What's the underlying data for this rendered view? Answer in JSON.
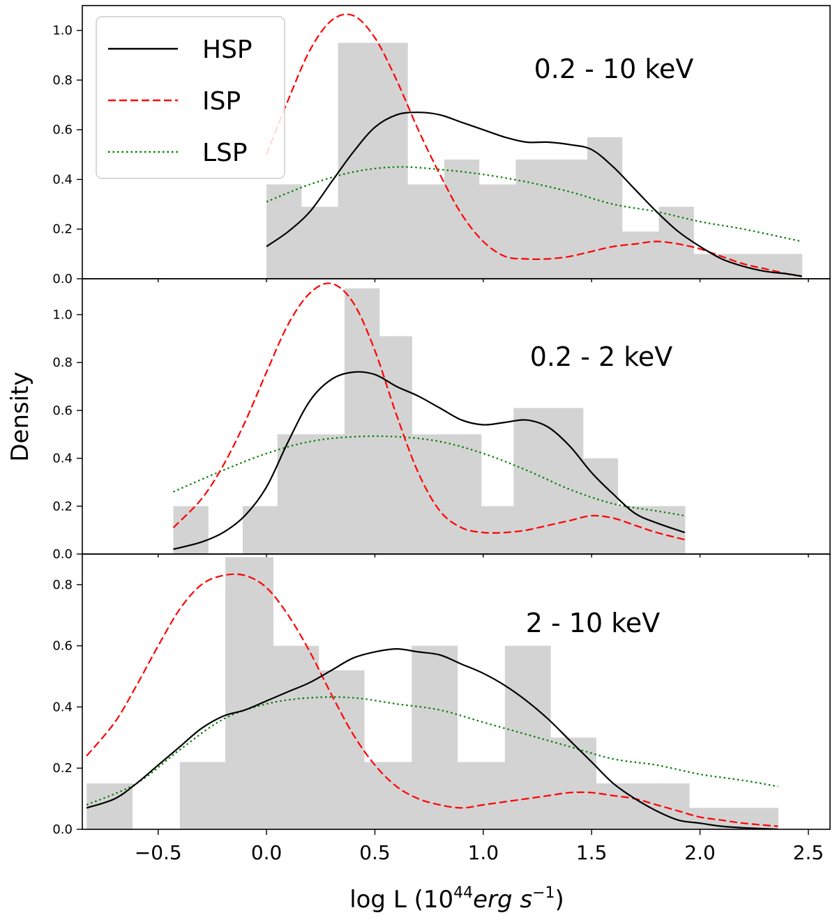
{
  "chart_data": {
    "type": "histogram-kde",
    "ylabel": "Density",
    "xlabel_prefix": "log L (10",
    "xlabel_exp": "44",
    "xlabel_unit": "erg s",
    "xlabel_unit_exp": "−1",
    "xlabel_suffix": ")",
    "xlim": [
      -0.85,
      2.6
    ],
    "xticks": [
      -0.5,
      0.0,
      0.5,
      1.0,
      1.5,
      2.0,
      2.5
    ],
    "xtick_labels": [
      "−0.5",
      "0.0",
      "0.5",
      "1.0",
      "1.5",
      "2.0",
      "2.5"
    ],
    "legend": [
      {
        "name": "HSP",
        "color": "#000000",
        "style": "solid"
      },
      {
        "name": "ISP",
        "color": "#ff0000",
        "style": "dashed"
      },
      {
        "name": "LSP",
        "color": "#008000",
        "style": "dotted"
      }
    ],
    "panels": [
      {
        "label": "0.2 - 10 keV",
        "ylim": [
          0,
          1.1
        ],
        "yticks": [
          0.0,
          0.2,
          0.4,
          0.6,
          0.8,
          1.0
        ],
        "ytick_labels": [
          "0.0",
          "0.2",
          "0.4",
          "0.6",
          "0.8",
          "1.0"
        ],
        "bin_edges": [
          0.0,
          0.16,
          0.33,
          0.49,
          0.65,
          0.82,
          0.98,
          1.15,
          1.31,
          1.48,
          1.64,
          1.81,
          1.97,
          2.14,
          2.3,
          2.47
        ],
        "bins": [
          0.38,
          0.29,
          0.95,
          0.95,
          0.38,
          0.48,
          0.38,
          0.48,
          0.48,
          0.57,
          0.19,
          0.29,
          0.1,
          0.1,
          0.1
        ],
        "series": [
          {
            "name": "HSP",
            "x": [
              0.0,
              0.1,
              0.2,
              0.3,
              0.4,
              0.5,
              0.6,
              0.7,
              0.8,
              0.9,
              1.0,
              1.1,
              1.2,
              1.3,
              1.4,
              1.5,
              1.6,
              1.7,
              1.8,
              1.9,
              2.0,
              2.1,
              2.2,
              2.3,
              2.4,
              2.47
            ],
            "y": [
              0.13,
              0.19,
              0.27,
              0.39,
              0.51,
              0.61,
              0.66,
              0.67,
              0.66,
              0.63,
              0.6,
              0.57,
              0.55,
              0.55,
              0.54,
              0.52,
              0.45,
              0.36,
              0.27,
              0.19,
              0.13,
              0.08,
              0.05,
              0.03,
              0.02,
              0.01
            ]
          },
          {
            "name": "ISP",
            "x": [
              0.0,
              0.1,
              0.2,
              0.3,
              0.4,
              0.5,
              0.6,
              0.7,
              0.8,
              0.9,
              1.0,
              1.1,
              1.2,
              1.3,
              1.4,
              1.5,
              1.6,
              1.7,
              1.8,
              1.9,
              2.0,
              2.1,
              2.2,
              2.3,
              2.4,
              2.47
            ],
            "y": [
              0.5,
              0.72,
              0.92,
              1.04,
              1.06,
              0.97,
              0.8,
              0.6,
              0.42,
              0.26,
              0.15,
              0.09,
              0.08,
              0.08,
              0.09,
              0.11,
              0.13,
              0.14,
              0.15,
              0.14,
              0.12,
              0.09,
              0.06,
              0.04,
              0.02,
              0.01
            ]
          },
          {
            "name": "LSP",
            "x": [
              0.0,
              0.2,
              0.4,
              0.6,
              0.8,
              1.0,
              1.2,
              1.4,
              1.6,
              1.8,
              2.0,
              2.2,
              2.47
            ],
            "y": [
              0.31,
              0.38,
              0.43,
              0.45,
              0.44,
              0.42,
              0.39,
              0.35,
              0.3,
              0.27,
              0.23,
              0.2,
              0.15
            ]
          }
        ]
      },
      {
        "label": "0.2 - 2 keV",
        "ylim": [
          0,
          1.15
        ],
        "yticks": [
          0.0,
          0.2,
          0.4,
          0.6,
          0.8,
          1.0
        ],
        "ytick_labels": [
          "0.0",
          "0.2",
          "0.4",
          "0.6",
          "0.8",
          "1.0"
        ],
        "bin_edges": [
          -0.43,
          -0.27,
          -0.11,
          0.05,
          0.2,
          0.36,
          0.52,
          0.67,
          0.83,
          0.99,
          1.14,
          1.3,
          1.46,
          1.62,
          1.77,
          1.93
        ],
        "bins": [
          0.2,
          0.0,
          0.2,
          0.5,
          0.5,
          1.11,
          0.91,
          0.5,
          0.5,
          0.2,
          0.61,
          0.61,
          0.4,
          0.2,
          0.2
        ],
        "series": [
          {
            "name": "HSP",
            "x": [
              -0.43,
              -0.3,
              -0.2,
              -0.1,
              0.0,
              0.1,
              0.2,
              0.3,
              0.4,
              0.5,
              0.6,
              0.7,
              0.8,
              0.9,
              1.0,
              1.1,
              1.2,
              1.3,
              1.4,
              1.5,
              1.6,
              1.7,
              1.8,
              1.93
            ],
            "y": [
              0.02,
              0.05,
              0.09,
              0.16,
              0.28,
              0.47,
              0.64,
              0.73,
              0.76,
              0.75,
              0.7,
              0.66,
              0.61,
              0.56,
              0.54,
              0.55,
              0.56,
              0.53,
              0.45,
              0.34,
              0.25,
              0.17,
              0.13,
              0.09
            ]
          },
          {
            "name": "ISP",
            "x": [
              -0.43,
              -0.3,
              -0.2,
              -0.1,
              0.0,
              0.1,
              0.2,
              0.3,
              0.4,
              0.5,
              0.6,
              0.7,
              0.8,
              0.9,
              1.0,
              1.1,
              1.2,
              1.3,
              1.4,
              1.5,
              1.6,
              1.7,
              1.8,
              1.93
            ],
            "y": [
              0.11,
              0.23,
              0.37,
              0.55,
              0.76,
              0.96,
              1.09,
              1.13,
              1.05,
              0.85,
              0.58,
              0.34,
              0.18,
              0.11,
              0.09,
              0.09,
              0.1,
              0.12,
              0.14,
              0.16,
              0.15,
              0.12,
              0.09,
              0.06
            ]
          },
          {
            "name": "LSP",
            "x": [
              -0.43,
              -0.2,
              0.0,
              0.2,
              0.4,
              0.6,
              0.8,
              1.0,
              1.2,
              1.4,
              1.6,
              1.8,
              1.93
            ],
            "y": [
              0.26,
              0.35,
              0.42,
              0.47,
              0.49,
              0.49,
              0.47,
              0.42,
              0.35,
              0.27,
              0.21,
              0.18,
              0.16
            ]
          }
        ]
      },
      {
        "label": "2 - 10 keV",
        "ylim": [
          0,
          0.9
        ],
        "yticks": [
          0.0,
          0.2,
          0.4,
          0.6,
          0.8
        ],
        "ytick_labels": [
          "0.0",
          "0.2",
          "0.4",
          "0.6",
          "0.8"
        ],
        "bin_edges": [
          -0.83,
          -0.62,
          -0.4,
          -0.19,
          0.03,
          0.24,
          0.45,
          0.67,
          0.88,
          1.1,
          1.31,
          1.52,
          1.74,
          1.95,
          2.16,
          2.36
        ],
        "bins": [
          0.15,
          0.0,
          0.22,
          0.89,
          0.6,
          0.52,
          0.22,
          0.6,
          0.22,
          0.6,
          0.3,
          0.15,
          0.15,
          0.07,
          0.07
        ],
        "series": [
          {
            "name": "HSP",
            "x": [
              -0.83,
              -0.7,
              -0.6,
              -0.5,
              -0.4,
              -0.3,
              -0.2,
              -0.1,
              0.0,
              0.1,
              0.2,
              0.3,
              0.4,
              0.5,
              0.6,
              0.7,
              0.8,
              0.9,
              1.0,
              1.1,
              1.2,
              1.3,
              1.4,
              1.5,
              1.6,
              1.7,
              1.8,
              1.9,
              2.0,
              2.1,
              2.2,
              2.36
            ],
            "y": [
              0.07,
              0.1,
              0.15,
              0.21,
              0.27,
              0.33,
              0.37,
              0.39,
              0.42,
              0.45,
              0.48,
              0.52,
              0.56,
              0.58,
              0.59,
              0.58,
              0.57,
              0.54,
              0.51,
              0.47,
              0.42,
              0.36,
              0.29,
              0.22,
              0.15,
              0.1,
              0.06,
              0.03,
              0.02,
              0.01,
              0.005,
              0.0
            ]
          },
          {
            "name": "ISP",
            "x": [
              -0.83,
              -0.7,
              -0.6,
              -0.5,
              -0.4,
              -0.3,
              -0.2,
              -0.1,
              0.0,
              0.1,
              0.2,
              0.3,
              0.4,
              0.5,
              0.6,
              0.7,
              0.8,
              0.9,
              1.0,
              1.1,
              1.2,
              1.3,
              1.4,
              1.5,
              1.6,
              1.7,
              1.8,
              1.9,
              2.0,
              2.1,
              2.2,
              2.36
            ],
            "y": [
              0.24,
              0.35,
              0.47,
              0.6,
              0.72,
              0.8,
              0.83,
              0.83,
              0.79,
              0.7,
              0.58,
              0.44,
              0.31,
              0.21,
              0.14,
              0.1,
              0.08,
              0.07,
              0.08,
              0.09,
              0.1,
              0.11,
              0.12,
              0.12,
              0.11,
              0.1,
              0.08,
              0.06,
              0.04,
              0.03,
              0.02,
              0.01
            ]
          },
          {
            "name": "LSP",
            "x": [
              -0.83,
              -0.6,
              -0.4,
              -0.2,
              0.0,
              0.2,
              0.4,
              0.6,
              0.8,
              1.0,
              1.2,
              1.4,
              1.6,
              1.8,
              2.0,
              2.2,
              2.36
            ],
            "y": [
              0.08,
              0.15,
              0.26,
              0.36,
              0.41,
              0.43,
              0.43,
              0.41,
              0.39,
              0.35,
              0.31,
              0.27,
              0.23,
              0.21,
              0.18,
              0.16,
              0.14
            ]
          }
        ]
      }
    ]
  }
}
